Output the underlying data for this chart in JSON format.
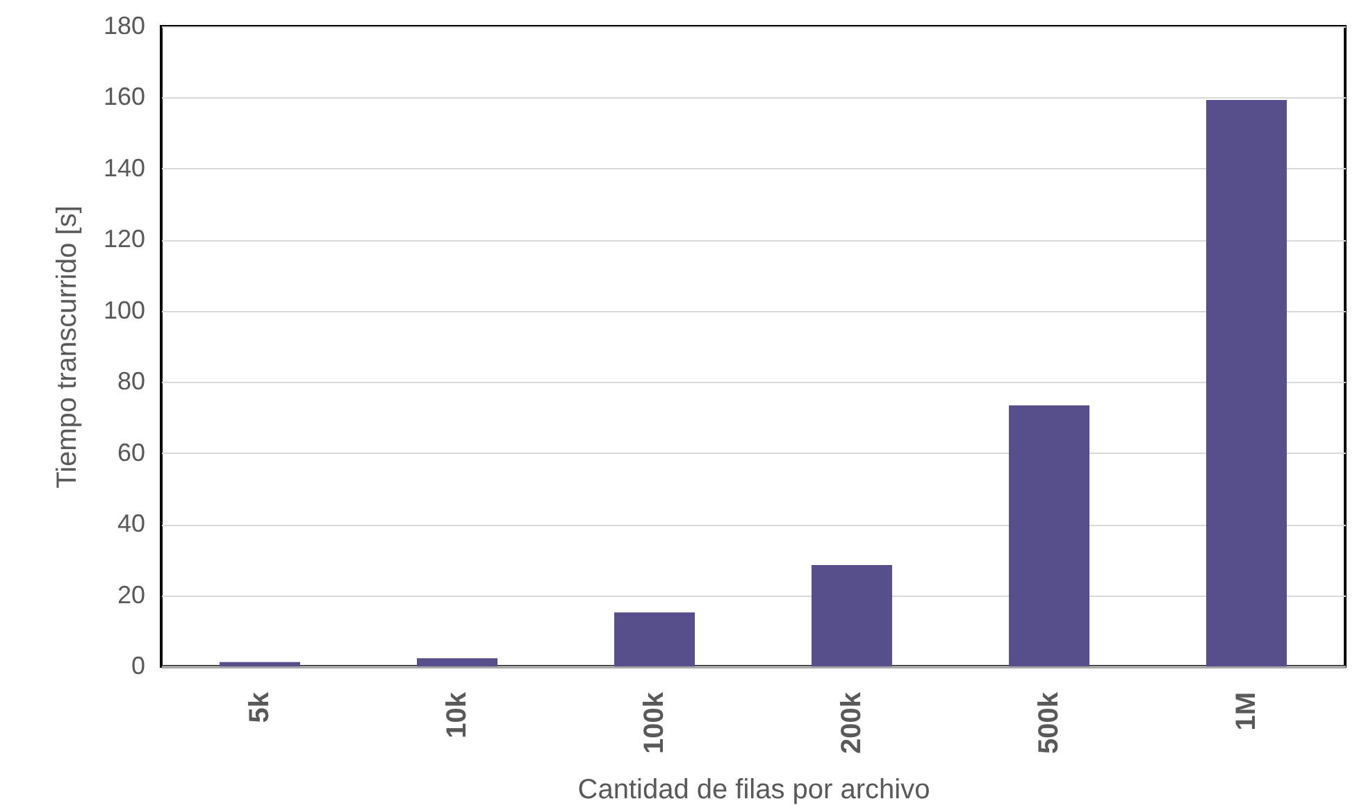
{
  "chart_data": {
    "type": "bar",
    "xlabel": "Cantidad de filas por archivo",
    "ylabel": "Tiempo transcurrido [s]",
    "categories": [
      "5k",
      "10k",
      "100k",
      "200k",
      "500k",
      "1M"
    ],
    "values": [
      1.2,
      2.3,
      15.2,
      28.5,
      73.4,
      159.3
    ],
    "color": "#574f8c",
    "ylim": [
      0,
      180
    ],
    "yticks": [
      0,
      20,
      40,
      60,
      80,
      100,
      120,
      140,
      160,
      180
    ],
    "grid": "y"
  }
}
